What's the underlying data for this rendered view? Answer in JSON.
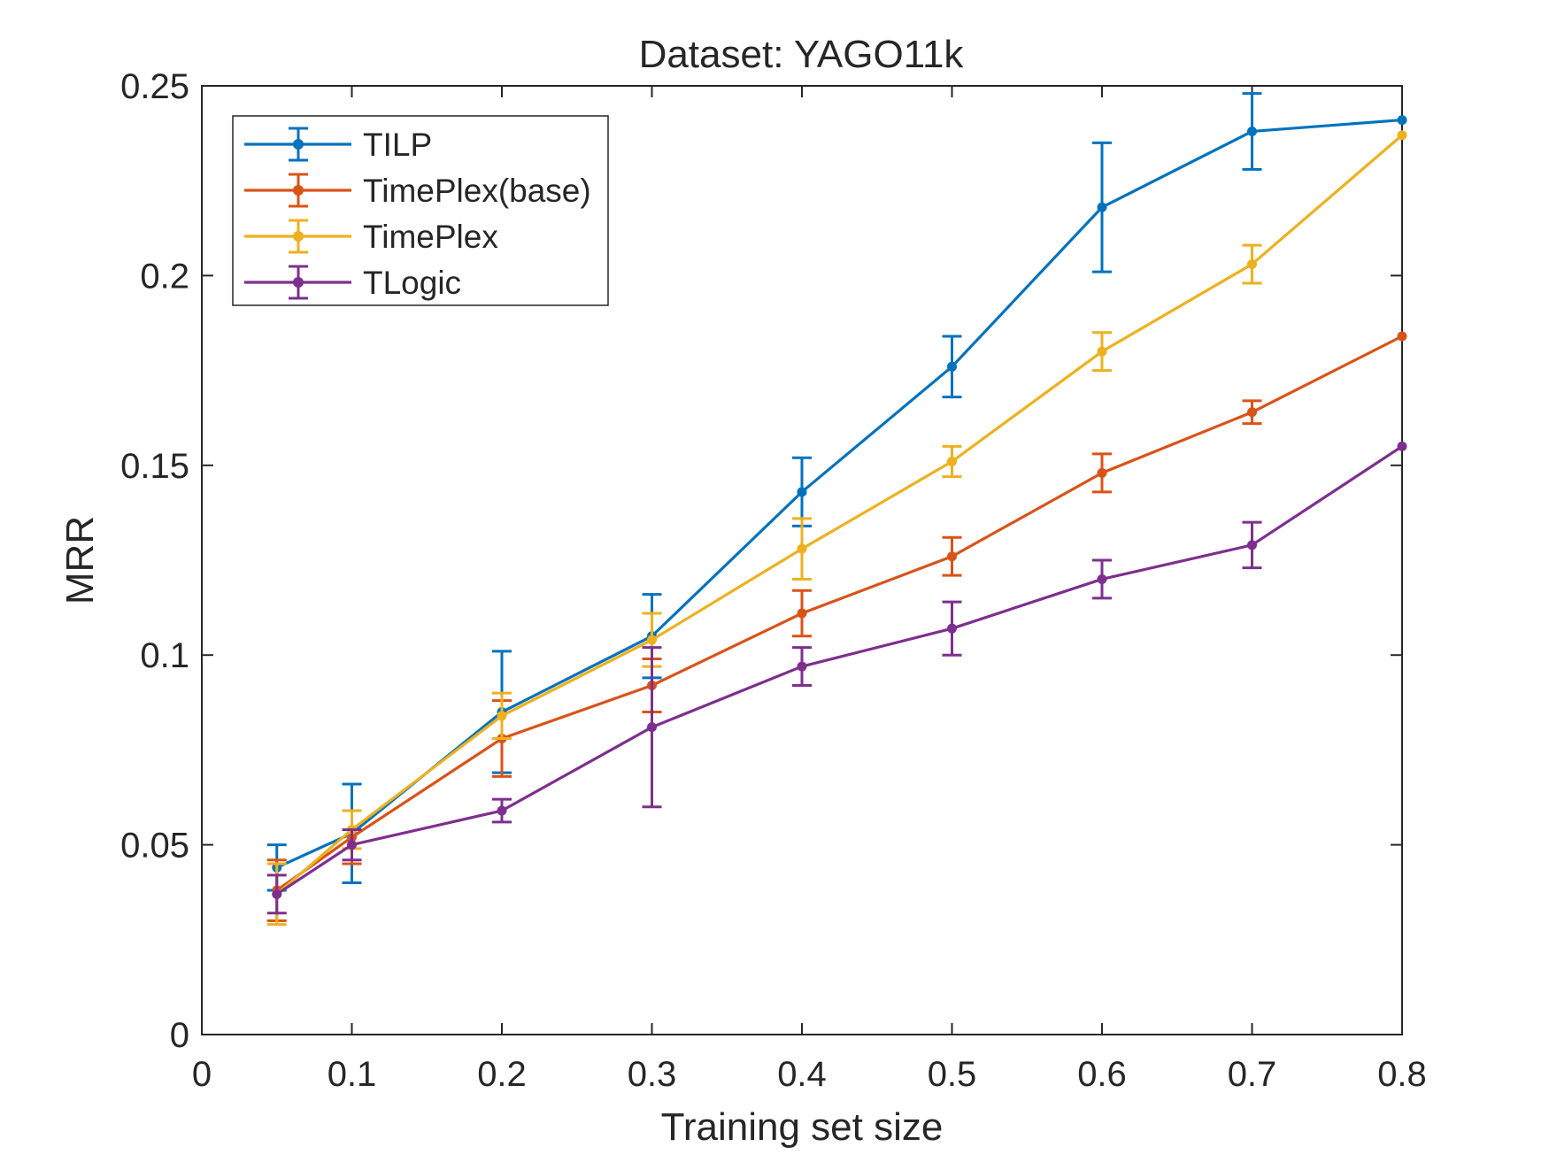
{
  "chart_data": {
    "type": "line",
    "title": "Dataset: YAGO11k",
    "xlabel": "Training set size",
    "ylabel": "MRR",
    "xlim": [
      0,
      0.8
    ],
    "ylim": [
      0,
      0.25
    ],
    "xticks": [
      0,
      0.1,
      0.2,
      0.3,
      0.4,
      0.5,
      0.6,
      0.7,
      0.8
    ],
    "xtick_labels": [
      "0",
      "0.1",
      "0.2",
      "0.3",
      "0.4",
      "0.5",
      "0.6",
      "0.7",
      "0.8"
    ],
    "yticks": [
      0,
      0.05,
      0.1,
      0.15,
      0.2,
      0.25
    ],
    "ytick_labels": [
      "0",
      "0.05",
      "0.1",
      "0.15",
      "0.2",
      "0.25"
    ],
    "grid": false,
    "legend_position": "top-left",
    "x": [
      0.05,
      0.1,
      0.2,
      0.3,
      0.4,
      0.5,
      0.6,
      0.7,
      0.8
    ],
    "series": [
      {
        "name": "TILP",
        "color": "#0072BD",
        "values": [
          0.044,
          0.053,
          0.085,
          0.105,
          0.143,
          0.176,
          0.218,
          0.238,
          0.241
        ],
        "errors": [
          0.006,
          0.013,
          0.016,
          0.011,
          0.009,
          0.008,
          0.017,
          0.01,
          0.0
        ]
      },
      {
        "name": "TimePlex(base)",
        "color": "#D95319",
        "values": [
          0.038,
          0.052,
          0.078,
          0.092,
          0.111,
          0.126,
          0.148,
          0.164,
          0.184
        ],
        "errors": [
          0.008,
          0.007,
          0.01,
          0.007,
          0.006,
          0.005,
          0.005,
          0.003,
          0.0
        ]
      },
      {
        "name": "TimePlex",
        "color": "#EDB120",
        "values": [
          0.037,
          0.054,
          0.084,
          0.104,
          0.128,
          0.151,
          0.18,
          0.203,
          0.237
        ],
        "errors": [
          0.008,
          0.005,
          0.006,
          0.007,
          0.008,
          0.004,
          0.005,
          0.005,
          0.0
        ]
      },
      {
        "name": "TLogic",
        "color": "#7E2F8E",
        "values": [
          0.037,
          0.05,
          0.059,
          0.081,
          0.097,
          0.107,
          0.12,
          0.129,
          0.155
        ],
        "errors": [
          0.005,
          0.004,
          0.003,
          0.021,
          0.005,
          0.007,
          0.005,
          0.006,
          0.0
        ]
      }
    ]
  }
}
